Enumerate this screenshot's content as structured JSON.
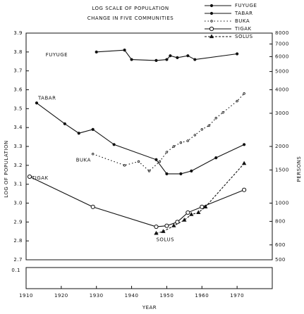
{
  "chart_data": {
    "type": "line",
    "title": "LOG SCALE OF POPULATION",
    "subtitle": "CHANGE IN FIVE COMMUNITIES",
    "ylabel": "LOG OF POPULATION",
    "y2label": "PERSONS",
    "xlabel": "YEAR",
    "break_label": "0.1",
    "xlim": [
      1910,
      1980
    ],
    "xticks": [
      1910,
      1920,
      1930,
      1940,
      1950,
      1960,
      1970
    ],
    "ylim": [
      2.7,
      3.9
    ],
    "yticks": [
      2.7,
      2.8,
      2.9,
      {
        "value": 3,
        "label": "3.0"
      },
      3.1,
      3.2,
      3.3,
      3.4,
      3.5,
      3.6,
      3.7,
      3.8,
      3.9
    ],
    "y2lim": [
      500,
      8000
    ],
    "y2scale": "log",
    "y2ticks": [
      500,
      600,
      800,
      1000,
      1500,
      2000,
      3000,
      4000,
      5000,
      6000,
      7000,
      8000
    ],
    "legend": "top-right",
    "series": [
      {
        "name": "FUYUGE",
        "color": "#111",
        "marker": "dot",
        "dash": "",
        "x": [
          1930,
          1938,
          1940,
          1947,
          1950,
          1951,
          1953,
          1956,
          1958,
          1970
        ],
        "values": [
          3.8,
          3.81,
          3.76,
          3.755,
          3.76,
          3.78,
          3.77,
          3.78,
          3.76,
          3.79
        ]
      },
      {
        "name": "TABAR",
        "color": "#111",
        "marker": "dot",
        "dash": "",
        "x": [
          1913,
          1921,
          1925,
          1929,
          1935,
          1947,
          1950,
          1954,
          1957,
          1964,
          1972
        ],
        "values": [
          3.53,
          3.42,
          3.37,
          3.39,
          3.31,
          3.23,
          3.155,
          3.155,
          3.17,
          3.24,
          3.31
        ]
      },
      {
        "name": "BUKA",
        "color": "#111",
        "marker": "open",
        "dash": "1.5,3",
        "x": [
          1929,
          1938,
          1942,
          1945,
          1948,
          1950,
          1952,
          1954,
          1956,
          1958,
          1960,
          1962,
          1964,
          1966,
          1970,
          1972
        ],
        "values": [
          3.26,
          3.2,
          3.22,
          3.17,
          3.22,
          3.27,
          3.3,
          3.32,
          3.33,
          3.36,
          3.39,
          3.41,
          3.45,
          3.48,
          3.54,
          3.58
        ]
      },
      {
        "name": "TIGAK",
        "color": "#111",
        "marker": "circle",
        "dash": "",
        "x": [
          1911,
          1929,
          1947,
          1950,
          1953,
          1956,
          1960,
          1972
        ],
        "values": [
          3.14,
          2.98,
          2.875,
          2.88,
          2.9,
          2.95,
          2.98,
          3.07
        ]
      },
      {
        "name": "SOLUS",
        "color": "#111",
        "marker": "triangle",
        "dash": "3,2",
        "x": [
          1947,
          1949,
          1952,
          1955,
          1957,
          1959,
          1961,
          1972
        ],
        "values": [
          2.84,
          2.85,
          2.88,
          2.91,
          2.94,
          2.95,
          2.98,
          3.21
        ]
      }
    ]
  }
}
